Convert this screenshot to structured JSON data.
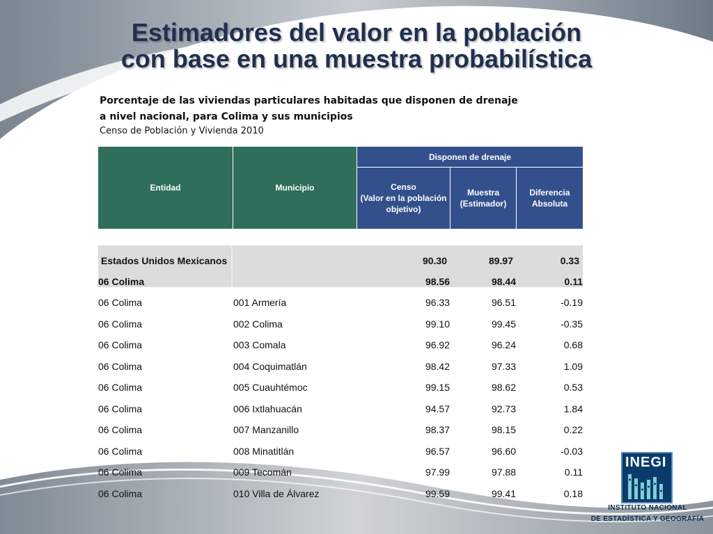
{
  "slide": {
    "title_line1": "Estimadores del valor en la población",
    "title_line2": "con base en una muestra probabilística",
    "subtitle_line1": "Porcentaje de las viviendas particulares habitadas que disponen de drenaje",
    "subtitle_line2": "a nivel nacional, para Colima y sus municipios",
    "source": "Censo de Población y Vivienda 2010"
  },
  "table": {
    "headers": {
      "entidad": "Entidad",
      "municipio": "Municipio",
      "group": "Disponen de drenaje",
      "censo_line1": "Censo",
      "censo_line2": "(Valor en la población",
      "censo_line3": "objetivo)",
      "muestra_line1": "Muestra",
      "muestra_line2": "(Estimador)",
      "diferencia_line1": "Diferencia",
      "diferencia_line2": "Absoluta"
    },
    "national": {
      "entidad": "Estados Unidos Mexicanos",
      "censo": "90.30",
      "muestra": "89.97",
      "diferencia": "0.33"
    },
    "state": {
      "entidad": "06 Colima",
      "censo": "98.56",
      "muestra": "98.44",
      "diferencia": "0.11"
    },
    "rows": [
      {
        "entidad": "06 Colima",
        "municipio": "001 Armería",
        "censo": "96.33",
        "muestra": "96.51",
        "diferencia": "-0.19"
      },
      {
        "entidad": "06 Colima",
        "municipio": "002 Colima",
        "censo": "99.10",
        "muestra": "99.45",
        "diferencia": "-0.35"
      },
      {
        "entidad": "06 Colima",
        "municipio": "003 Comala",
        "censo": "96.92",
        "muestra": "96.24",
        "diferencia": "0.68"
      },
      {
        "entidad": "06 Colima",
        "municipio": "004 Coquimatlán",
        "censo": "98.42",
        "muestra": "97.33",
        "diferencia": "1.09"
      },
      {
        "entidad": "06 Colima",
        "municipio": "005 Cuauhtémoc",
        "censo": "99.15",
        "muestra": "98.62",
        "diferencia": "0.53"
      },
      {
        "entidad": "06 Colima",
        "municipio": "006 Ixtlahuacán",
        "censo": "94.57",
        "muestra": "92.73",
        "diferencia": "1.84"
      },
      {
        "entidad": "06 Colima",
        "municipio": "007 Manzanillo",
        "censo": "98.37",
        "muestra": "98.15",
        "diferencia": "0.22"
      },
      {
        "entidad": "06 Colima",
        "municipio": "008 Minatitlán",
        "censo": "96.57",
        "muestra": "96.60",
        "diferencia": "-0.03"
      },
      {
        "entidad": "06 Colima",
        "municipio": "009 Tecomán",
        "censo": "97.99",
        "muestra": "97.88",
        "diferencia": "0.11"
      },
      {
        "entidad": "06 Colima",
        "municipio": "010 Villa de Álvarez",
        "censo": "99.59",
        "muestra": "99.41",
        "diferencia": "0.18"
      }
    ]
  },
  "logo": {
    "brand": "INEGI",
    "institute_line1": "INSTITUTO NACIONAL",
    "institute_line2": "DE ESTADÍSTICA Y GEOGRAFÍA"
  },
  "colors": {
    "header_green": "#2f6e5a",
    "header_blue": "#33508d",
    "title": "#1f2f4f",
    "summary_grey": "#dcdcdc",
    "logo_blue": "#0b3b6b"
  }
}
